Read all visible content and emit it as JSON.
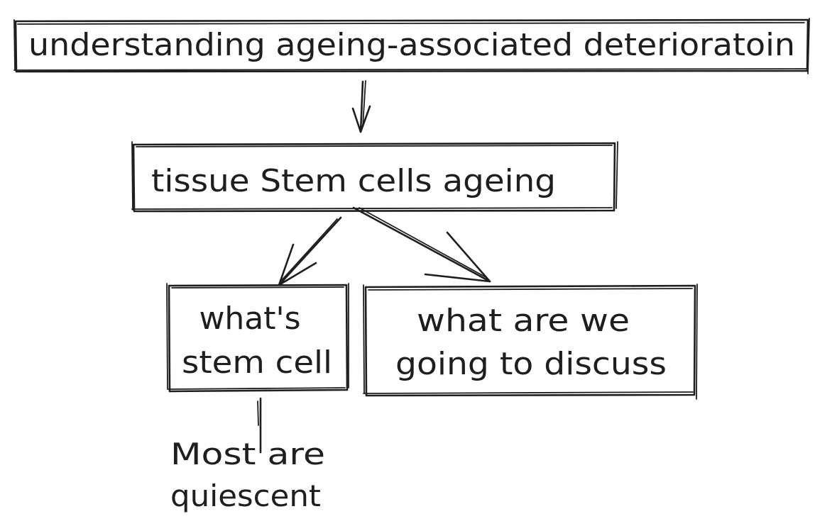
{
  "diagram": {
    "nodes": {
      "top": {
        "label": "understanding ageing-associated deterioratoin"
      },
      "middle": {
        "label": "tissue Stem cells ageing"
      },
      "left": {
        "line1": "what's",
        "line2": "stem cell"
      },
      "right": {
        "line1": "what are we",
        "line2": "going to discuss"
      }
    },
    "note": {
      "line1": "Most are",
      "line2": "quiescent"
    }
  },
  "colors": {
    "ink": "#1e1e1e",
    "background": "#ffffff"
  }
}
